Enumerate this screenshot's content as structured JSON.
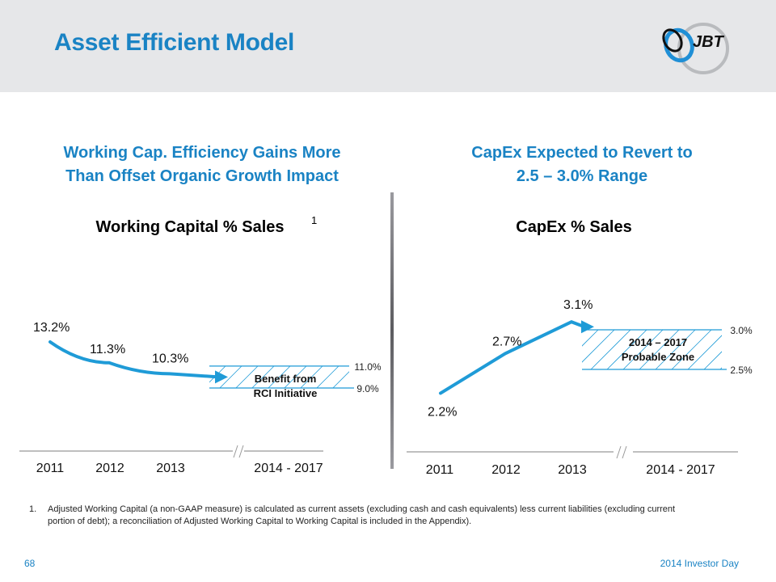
{
  "header": {
    "title": "Asset Efficient Model",
    "logo_text": "JBT",
    "logo_icon": "jbt-swirl-logo"
  },
  "left_panel": {
    "subheading_line1": "Working Cap. Efficiency Gains More",
    "subheading_line2": "Than Offset Organic Growth Impact",
    "chart_title": "Working Capital %  Sales",
    "footnote_marker": "1"
  },
  "right_panel": {
    "subheading_line1": "CapEx Expected to Revert to",
    "subheading_line2": "2.5 – 3.0%  Range",
    "chart_title": "CapEx %  Sales"
  },
  "chart_data": [
    {
      "type": "line",
      "title": "Working Capital % Sales",
      "categories": [
        "2011",
        "2012",
        "2013",
        "2014 - 2017"
      ],
      "series": [
        {
          "name": "Working Capital % Sales",
          "values": [
            13.2,
            11.3,
            10.3
          ],
          "labels": [
            "13.2%",
            "11.3%",
            "10.3%"
          ],
          "color": "#1f9bd7"
        }
      ],
      "target_zone": {
        "category": "2014 - 2017",
        "low": 9.0,
        "high": 11.0,
        "low_label": "9.0%",
        "high_label": "11.0%",
        "label_line1": "Benefit from",
        "label_line2": "RCI Initiative"
      },
      "axis_break": "//",
      "grid": false,
      "xlabel": "",
      "ylabel": ""
    },
    {
      "type": "line",
      "title": "CapEx % Sales",
      "categories": [
        "2011",
        "2012",
        "2013",
        "2014 - 2017"
      ],
      "series": [
        {
          "name": "CapEx % Sales",
          "values": [
            2.2,
            2.7,
            3.1
          ],
          "labels": [
            "2.2%",
            "2.7%",
            "3.1%"
          ],
          "color": "#1f9bd7"
        }
      ],
      "target_zone": {
        "category": "2014 - 2017",
        "low": 2.5,
        "high": 3.0,
        "low_label": "2.5%",
        "high_label": "3.0%",
        "label_line1": "2014 – 2017",
        "label_line2": "Probable Zone"
      },
      "axis_break": "//",
      "grid": false,
      "xlabel": "",
      "ylabel": ""
    }
  ],
  "footnote": {
    "number": "1.",
    "text": "Adjusted Working Capital (a non-GAAP measure) is calculated as current assets (excluding cash and cash equivalents)  less current liabilities (excluding current portion of debt);  a reconciliation of Adjusted Working Capital to Working Capital is included in the Appendix)."
  },
  "footer": {
    "page_number": "68",
    "event": "2014 Investor Day"
  },
  "colors": {
    "accent": "#1a83c4",
    "line": "#1f9bd7",
    "header_bg": "#e6e7e9"
  }
}
